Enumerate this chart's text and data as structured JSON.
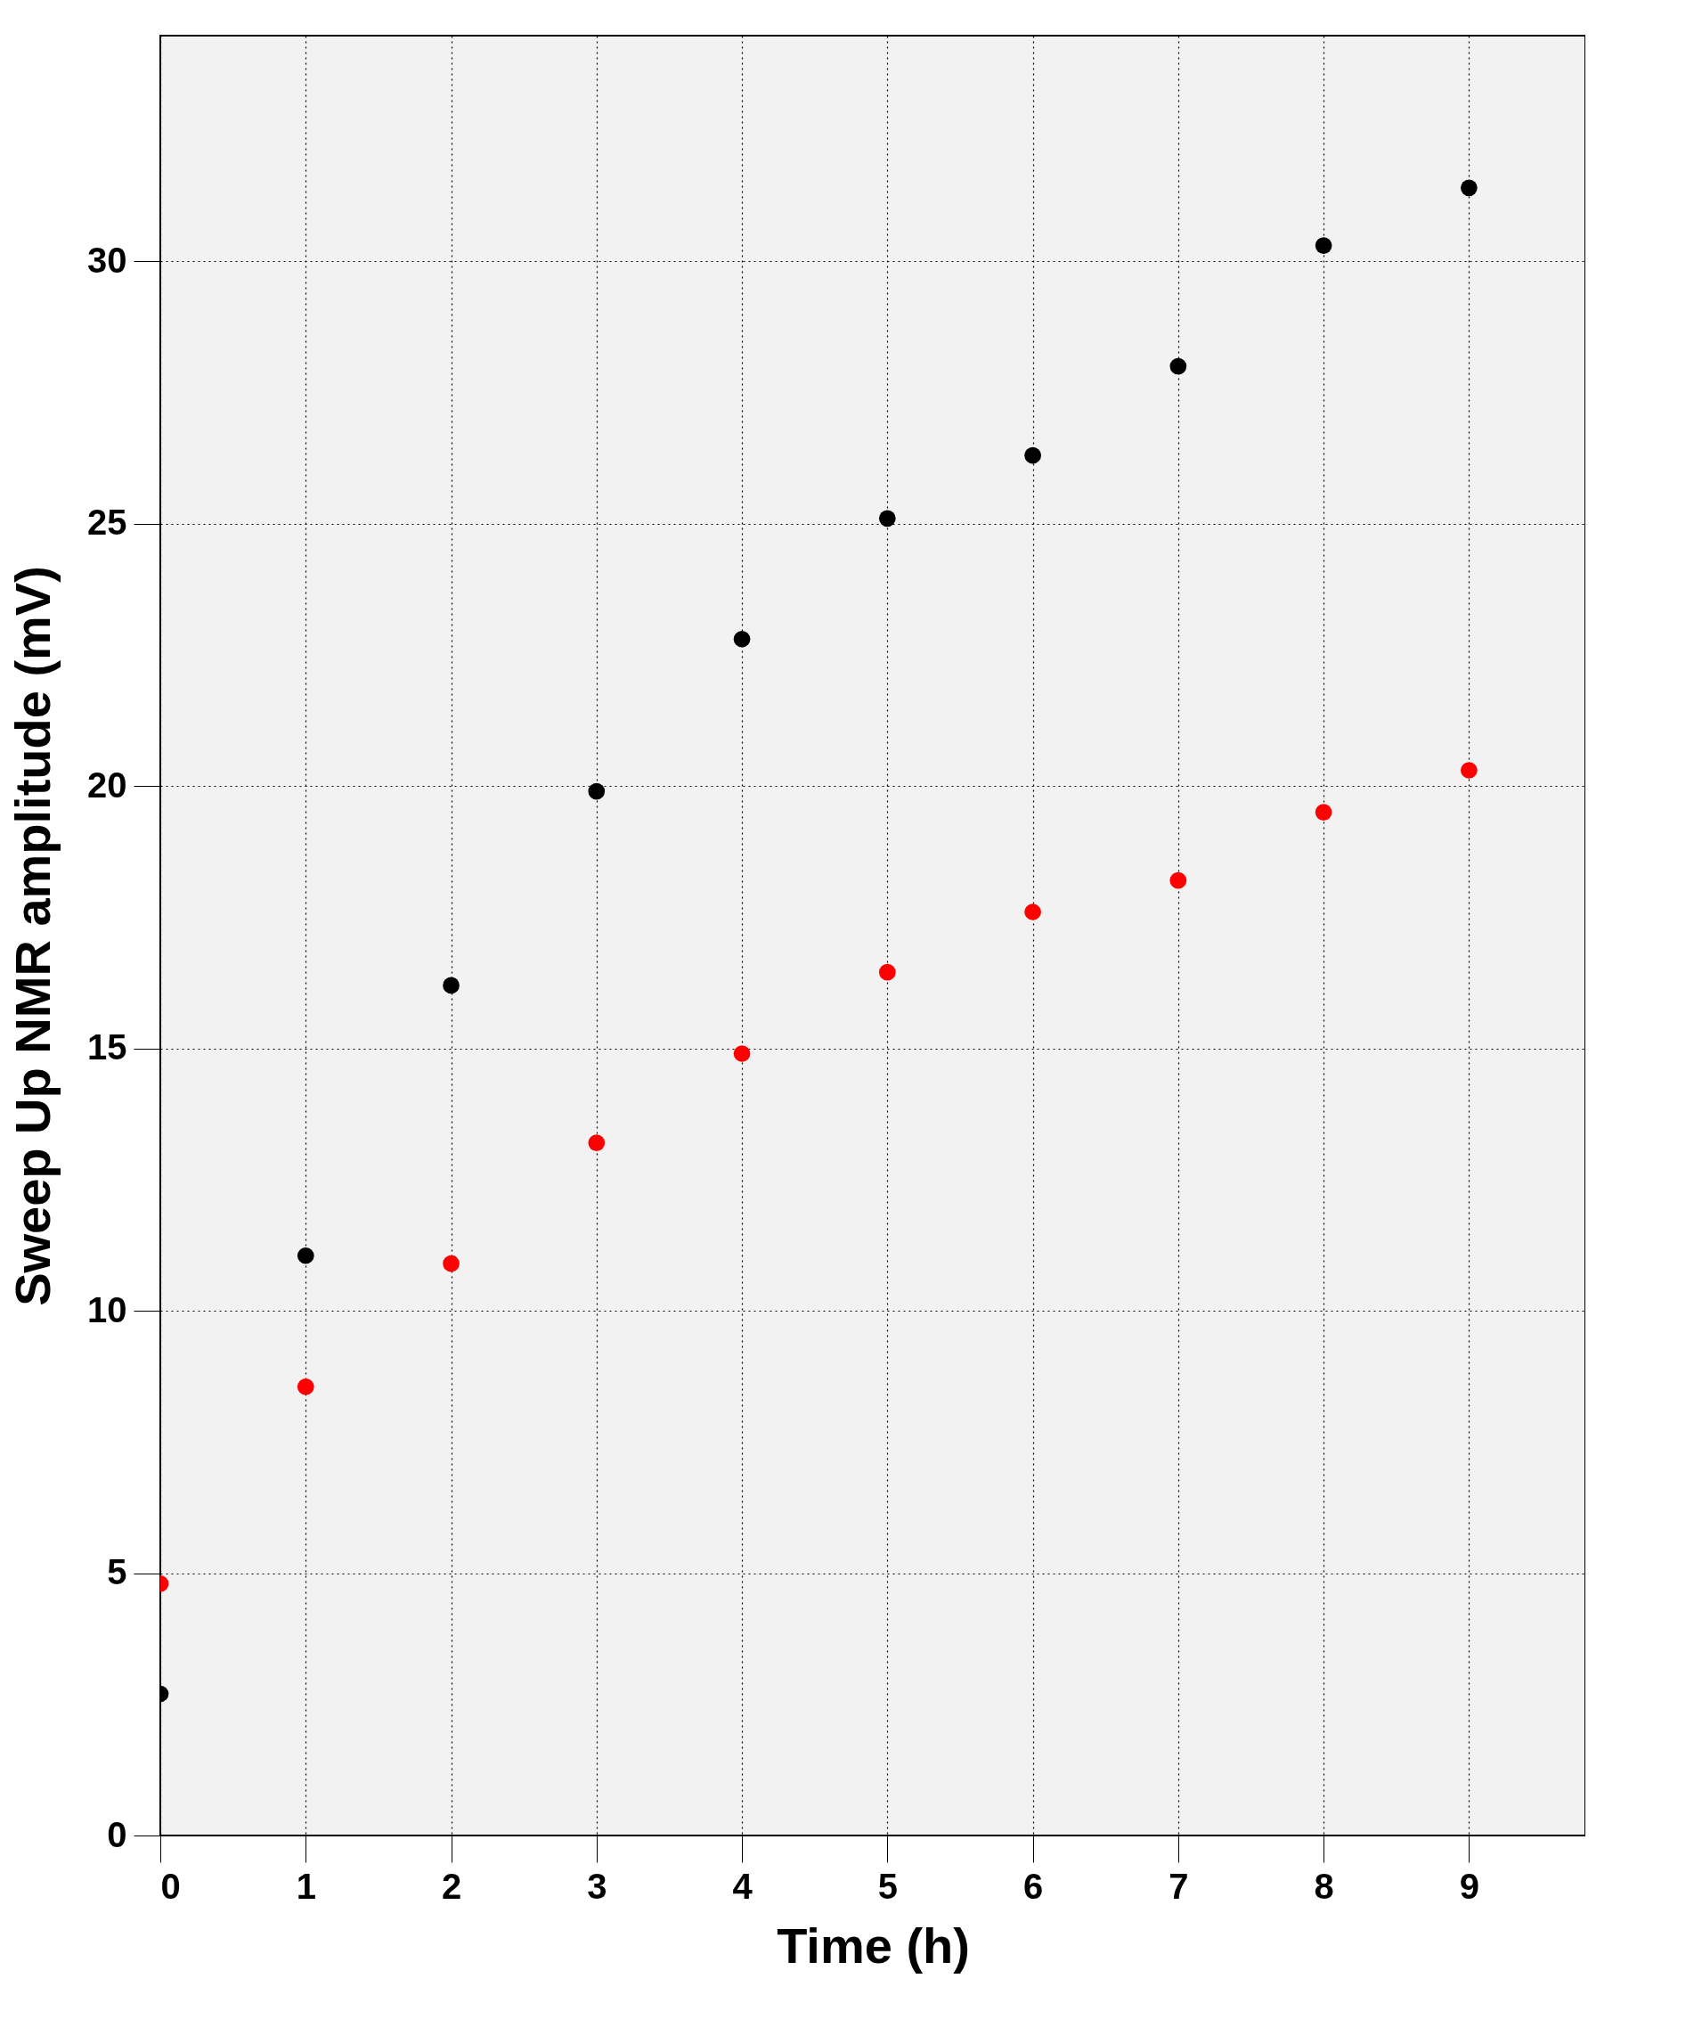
{
  "chart_data": {
    "type": "scatter",
    "xlabel": "Time (h)",
    "ylabel": "Sweep Up NMR amplitude (mV)",
    "x": [
      0,
      1,
      2,
      3,
      4,
      5,
      6,
      7,
      8,
      9
    ],
    "series": [
      {
        "color": "#000000",
        "values": [
          2.7,
          11.05,
          16.2,
          19.9,
          22.8,
          25.1,
          26.3,
          28.0,
          30.3,
          31.4
        ]
      },
      {
        "color": "#ff0000",
        "values": [
          4.8,
          8.55,
          10.9,
          13.2,
          14.9,
          16.45,
          17.6,
          18.2,
          19.5,
          20.3
        ]
      }
    ],
    "xlim": [
      0,
      9.8
    ],
    "xticks": [
      0,
      1,
      2,
      3,
      4,
      5,
      6,
      7,
      8,
      9
    ],
    "ylim": [
      0,
      34.3
    ],
    "yticks": [
      0,
      5,
      10,
      15,
      20,
      25,
      30
    ],
    "grid": true,
    "marker": "circle"
  }
}
